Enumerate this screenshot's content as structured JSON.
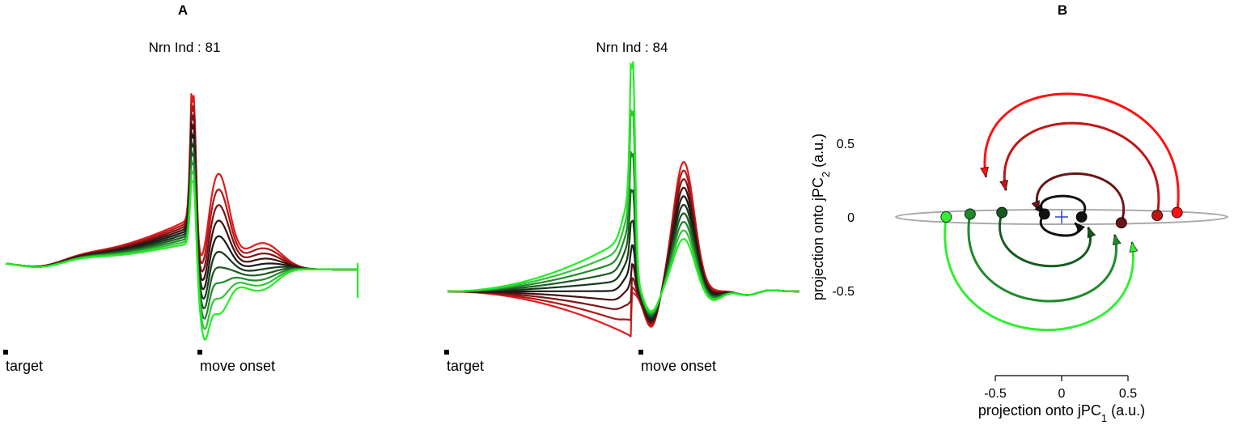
{
  "panel_a": {
    "letter": "A"
  },
  "panel_b": {
    "letter": "B"
  },
  "chart_data": [
    {
      "type": "line",
      "panel": "A",
      "title": "Nrn Ind : 81",
      "event_labels": [
        "target",
        "move onset"
      ],
      "condition_colors": [
        "#e31a1c",
        "#b01818",
        "#7a1414",
        "#451010",
        "#1a1a1a",
        "#15391a",
        "#1d5a22",
        "#218a2c",
        "#33c23a",
        "#22ee22"
      ],
      "trace_style": "baseline ramp, sharp peak at move onset, secondary bumps; red conditions highest, green lowest"
    },
    {
      "type": "line",
      "panel": "A",
      "title": "Nrn Ind : 84",
      "event_labels": [
        "target",
        "move onset"
      ],
      "condition_colors": [
        "#e31a1c",
        "#b01818",
        "#7a1414",
        "#451010",
        "#1a1a1a",
        "#15391a",
        "#1d5a22",
        "#218a2c",
        "#33c23a",
        "#22ee22"
      ],
      "trace_style": "green conditions peak at move onset, red conditions peak later"
    },
    {
      "type": "scatter",
      "panel": "B",
      "xlabel": "projection onto jPC",
      "xlabel_sub": "1",
      "xlabel_unit": "(a.u.)",
      "ylabel": "projection onto jPC",
      "ylabel_sub": "2",
      "ylabel_unit": "(a.u.)",
      "xticks": [
        "-0.5",
        "0",
        "0.5"
      ],
      "yticks": [
        "0.5",
        "0",
        "-0.5"
      ],
      "xlim": [
        -0.82,
        1.01
      ],
      "ylim": [
        -0.92,
        0.92
      ],
      "ellipse": {
        "cx": 0.0,
        "rx": 1.0,
        "ry": 0.05,
        "color": "#aaaaaa"
      },
      "origin_marker_color": "#2233cc",
      "trajectories": [
        {
          "color": "#ff1111",
          "start": [
            0.87,
            0.03
          ],
          "end": [
            -0.57,
            0.27
          ],
          "rotation": "counterclockwise",
          "radius": 0.72
        },
        {
          "color": "#c01515",
          "start": [
            0.72,
            0.01
          ],
          "end": [
            -0.42,
            0.18
          ],
          "rotation": "counterclockwise",
          "radius": 0.57
        },
        {
          "color": "#6a1414",
          "start": [
            0.45,
            -0.04
          ],
          "end": [
            -0.17,
            0.04
          ],
          "rotation": "counterclockwise",
          "radius": 0.31
        },
        {
          "color": "#111111",
          "start": [
            0.15,
            0.0
          ],
          "end": [
            -0.13,
            0.02
          ],
          "rotation": "counterclockwise",
          "radius": 0.14
        },
        {
          "color": "#111111",
          "start": [
            -0.13,
            0.02
          ],
          "end": [
            0.1,
            -0.04
          ],
          "rotation": "counterclockwise",
          "radius": 0.12
        },
        {
          "color": "#155a1e",
          "start": [
            -0.45,
            0.03
          ],
          "end": [
            0.2,
            -0.07
          ],
          "rotation": "counterclockwise",
          "radius": 0.33
        },
        {
          "color": "#1f8a2a",
          "start": [
            -0.69,
            0.02
          ],
          "end": [
            0.4,
            -0.12
          ],
          "rotation": "counterclockwise",
          "radius": 0.55
        },
        {
          "color": "#33ee33",
          "start": [
            -0.87,
            0.0
          ],
          "end": [
            0.53,
            -0.17
          ],
          "rotation": "counterclockwise",
          "radius": 0.72
        }
      ]
    }
  ]
}
